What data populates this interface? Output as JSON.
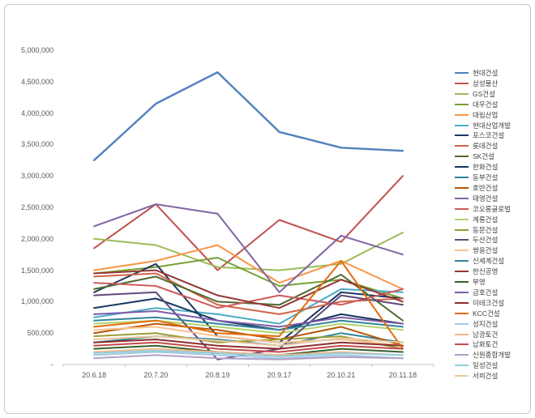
{
  "chart_data": {
    "type": "line",
    "title": "",
    "xlabel": "",
    "ylabel": "",
    "x": [
      "20.6.18",
      "20.7.20",
      "20.8.19",
      "20.9.17",
      "20.10.21",
      "20.11.18"
    ],
    "ylim": [
      0,
      5000000
    ],
    "y_tick_values": [
      5000000,
      4500000,
      4000000,
      3500000,
      3000000,
      2500000,
      2000000,
      1500000,
      1000000,
      500000,
      0
    ],
    "y_tick_labels": [
      "5,000,000",
      "4,500,000",
      "4,000,000",
      "3,500,000",
      "3,000,000",
      "2,500,000",
      "2,000,000",
      "1,500,000",
      "1,000,000",
      "500,000",
      "-"
    ],
    "grid": false,
    "legend_position": "right",
    "axis_color": "#bfbfbf",
    "series": [
      {
        "name": "현대건설",
        "color": "#4F81BD",
        "values": [
          3250000,
          4150000,
          4650000,
          3700000,
          3450000,
          3400000
        ]
      },
      {
        "name": "삼성물산",
        "color": "#C0504D",
        "values": [
          1850000,
          2550000,
          1500000,
          2300000,
          1950000,
          3000000
        ]
      },
      {
        "name": "GS건설",
        "color": "#9BBB59",
        "values": [
          2000000,
          1900000,
          1550000,
          1500000,
          1600000,
          2100000
        ]
      },
      {
        "name": "대우건설",
        "color": "#77A033",
        "values": [
          1450000,
          1550000,
          1700000,
          1250000,
          1350000,
          1050000
        ]
      },
      {
        "name": "대림산업",
        "color": "#F79646",
        "values": [
          1500000,
          1650000,
          1900000,
          1300000,
          1650000,
          1200000
        ]
      },
      {
        "name": "현대산업개발",
        "color": "#4BACC6",
        "values": [
          750000,
          900000,
          800000,
          650000,
          1200000,
          1150000
        ]
      },
      {
        "name": "포스코건설",
        "color": "#1F3864",
        "values": [
          1150000,
          1600000,
          450000,
          350000,
          1150000,
          1050000
        ]
      },
      {
        "name": "롯데건설",
        "color": "#D16349",
        "values": [
          1400000,
          1450000,
          950000,
          800000,
          1000000,
          1050000
        ]
      },
      {
        "name": "SK건설",
        "color": "#4E6B30",
        "values": [
          1200000,
          1400000,
          1000000,
          950000,
          1430000,
          700000
        ]
      },
      {
        "name": "한화건설",
        "color": "#17375E",
        "values": [
          900000,
          1050000,
          700000,
          550000,
          800000,
          650000
        ]
      },
      {
        "name": "동부건설",
        "color": "#31859C",
        "values": [
          350000,
          450000,
          400000,
          300000,
          500000,
          350000
        ]
      },
      {
        "name": "호반건설",
        "color": "#B65708",
        "values": [
          500000,
          650000,
          550000,
          400000,
          600000,
          300000
        ]
      },
      {
        "name": "태영건설",
        "color": "#8064A2",
        "values": [
          2200000,
          2550000,
          2400000,
          1150000,
          2050000,
          1750000
        ]
      },
      {
        "name": "코오롱글로벌",
        "color": "#CD5C5C",
        "values": [
          1300000,
          1250000,
          900000,
          1100000,
          950000,
          1200000
        ]
      },
      {
        "name": "계룡건설",
        "color": "#AFD46C",
        "values": [
          650000,
          700000,
          600000,
          500000,
          650000,
          550000
        ]
      },
      {
        "name": "동문건설",
        "color": "#9C9C37",
        "values": [
          450000,
          500000,
          350000,
          400000,
          450000,
          250000
        ]
      },
      {
        "name": "두산건설",
        "color": "#604A7B",
        "values": [
          1100000,
          1150000,
          80000,
          250000,
          1100000,
          950000
        ]
      },
      {
        "name": "쌍용건설",
        "color": "#FAC090",
        "values": [
          550000,
          600000,
          450000,
          350000,
          400000,
          300000
        ]
      },
      {
        "name": "신세계건설",
        "color": "#33849B",
        "values": [
          700000,
          750000,
          650000,
          550000,
          700000,
          600000
        ]
      },
      {
        "name": "한신공영",
        "color": "#953735",
        "values": [
          1450000,
          1500000,
          1100000,
          900000,
          1350000,
          1000000
        ]
      },
      {
        "name": "부영",
        "color": "#37602B",
        "values": [
          250000,
          300000,
          200000,
          150000,
          250000,
          200000
        ]
      },
      {
        "name": "금호건설",
        "color": "#7C5CA8",
        "values": [
          800000,
          850000,
          700000,
          600000,
          750000,
          650000
        ]
      },
      {
        "name": "이테크건설",
        "color": "#8B2E2E",
        "values": [
          350000,
          400000,
          300000,
          250000,
          350000,
          300000
        ]
      },
      {
        "name": "KCC건설",
        "color": "#E46C0A",
        "values": [
          600000,
          700000,
          500000,
          450000,
          1650000,
          250000
        ]
      },
      {
        "name": "성지건설",
        "color": "#A6C9E2",
        "values": [
          150000,
          200000,
          150000,
          100000,
          150000,
          100000
        ]
      },
      {
        "name": "남광토건",
        "color": "#F2B789",
        "values": [
          200000,
          250000,
          200000,
          150000,
          200000,
          150000
        ]
      },
      {
        "name": "남화토건",
        "color": "#C34A4A",
        "values": [
          300000,
          350000,
          250000,
          200000,
          300000,
          250000
        ]
      },
      {
        "name": "신원종합개발",
        "color": "#B1A0C7",
        "values": [
          100000,
          150000,
          100000,
          80000,
          120000,
          100000
        ]
      },
      {
        "name": "일성건설",
        "color": "#92CDDC",
        "values": [
          180000,
          220000,
          180000,
          130000,
          180000,
          150000
        ]
      },
      {
        "name": "서희건설",
        "color": "#E8C89E",
        "values": [
          400000,
          450000,
          380000,
          300000,
          420000,
          350000
        ]
      }
    ]
  }
}
